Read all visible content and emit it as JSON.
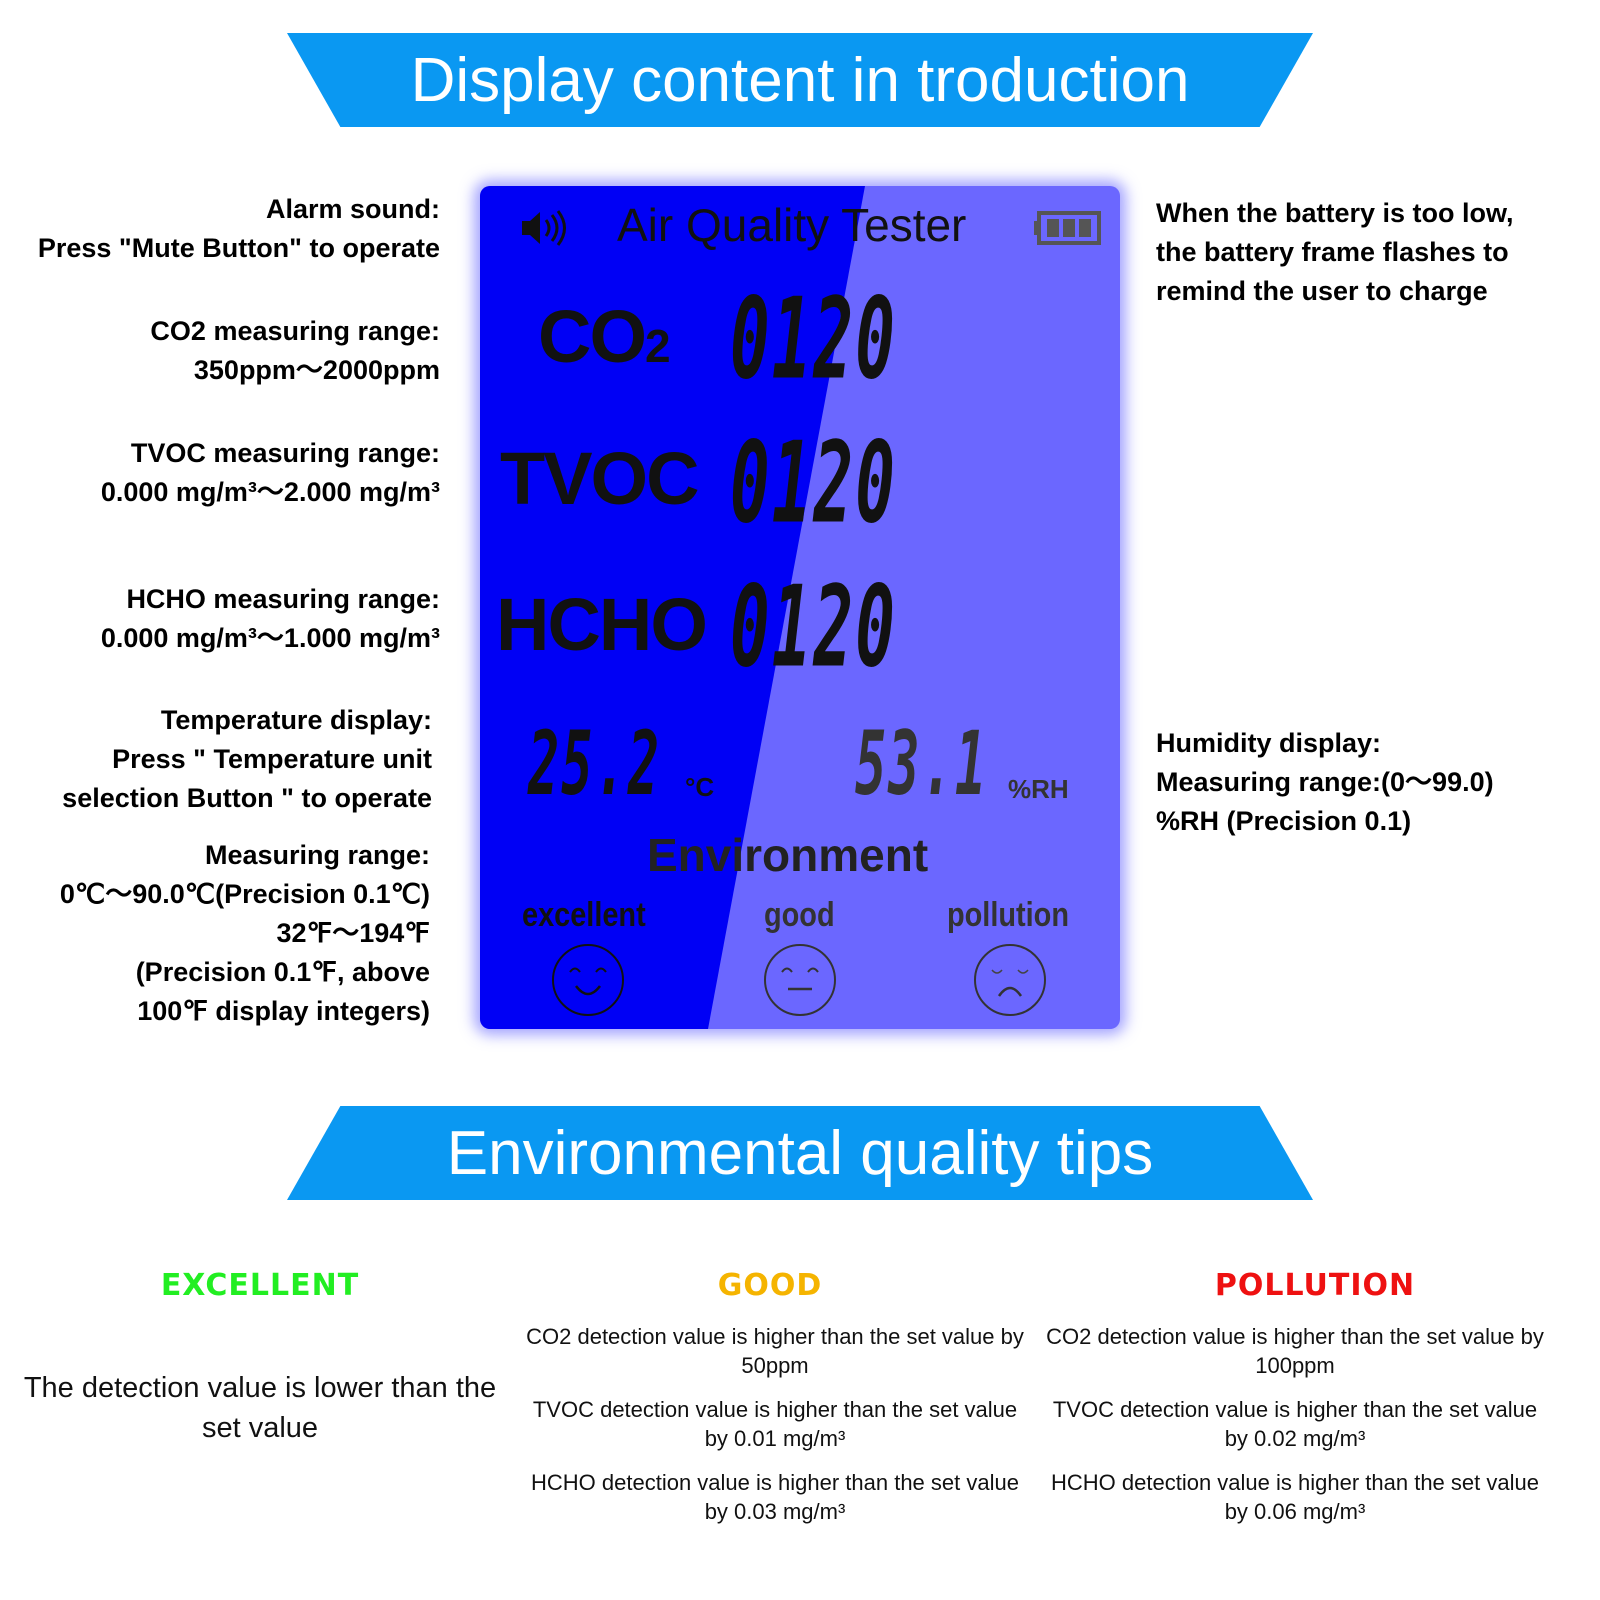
{
  "banners": {
    "top": "Display content in troduction",
    "bottom": "Environmental quality tips"
  },
  "left_notes": [
    [
      "Alarm sound:",
      "Press \"Mute Button\" to operate"
    ],
    [
      "CO2 measuring range:",
      "350ppm～2000ppm"
    ],
    [
      "TVOC measuring range:",
      "0.000 mg/m³～2.000 mg/m³"
    ],
    [
      "HCHO measuring range:",
      "0.000 mg/m³～1.000 mg/m³"
    ],
    [
      "Temperature display:",
      "Press \" Temperature unit",
      "selection Button \" to operate"
    ],
    [
      "Measuring range:",
      "0℃～90.0℃(Precision 0.1℃)",
      "32℉～194℉",
      "(Precision 0.1℉, above",
      "100℉ display integers)"
    ]
  ],
  "right_notes": [
    [
      "When the battery is too low,",
      "the battery frame flashes to",
      "remind the user to charge"
    ],
    [
      "Humidity display:",
      "Measuring range:(0～99.0)",
      "%RH (Precision 0.1)"
    ]
  ],
  "lcd": {
    "title": "Air Quality Tester",
    "rows": [
      {
        "label": "CO",
        "sub": "2",
        "value": "0120"
      },
      {
        "label": "TVOC",
        "value": "0120"
      },
      {
        "label": "HCHO",
        "value": "0120"
      }
    ],
    "temperature": "25.2",
    "temp_unit": "°C",
    "humidity": "53.1",
    "humidity_unit": "%RH",
    "environment": "Environment",
    "levels": [
      "excellent",
      "good",
      "pollution"
    ],
    "icons": [
      "speaker-icon",
      "battery-icon",
      "smile-face-icon",
      "neutral-face-icon",
      "sad-face-icon"
    ],
    "colors": {
      "backlight": "#0000f5",
      "panel": "#6b67ff"
    }
  },
  "tips": {
    "excellent": {
      "title": "EXCELLENT",
      "color": "#22ee22",
      "lines": [
        "The detection value is lower than the set value"
      ]
    },
    "good": {
      "title": "GOOD",
      "color": "#f5b400",
      "lines": [
        "CO2 detection value is higher than the set value by 50ppm",
        "TVOC detection value is higher than the set value by 0.01 mg/m³",
        "HCHO detection value is higher than the set value by 0.03 mg/m³"
      ]
    },
    "pollution": {
      "title": "POLLUTION",
      "color": "#ee1111",
      "lines": [
        "CO2 detection value is higher than the set value by 100ppm",
        "TVOC detection value is higher than the set value by 0.02 mg/m³",
        "HCHO detection value is higher than the set value by 0.06 mg/m³"
      ]
    }
  }
}
